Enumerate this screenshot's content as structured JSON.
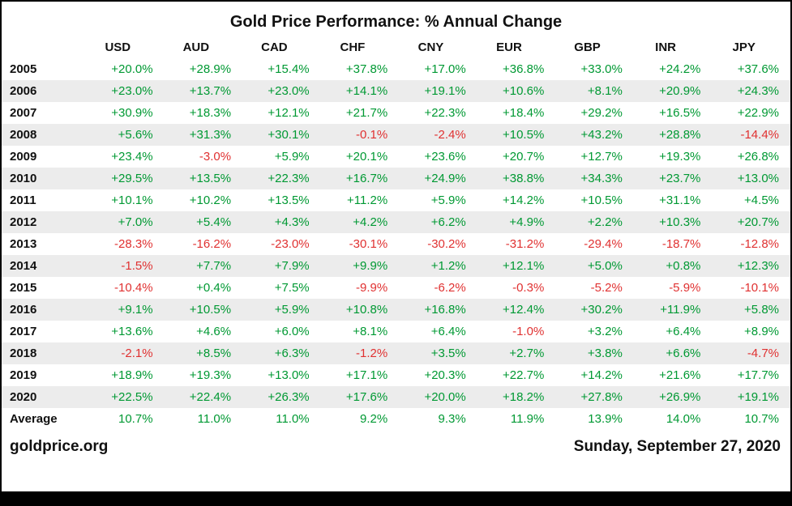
{
  "title": "Gold Price Performance: % Annual Change",
  "footer": {
    "source": "goldprice.org",
    "date": "Sunday, September 27, 2020"
  },
  "colors": {
    "positive": "#009933",
    "negative": "#e03131",
    "row_alt": "#ececec",
    "bottom_bar": "#000000"
  },
  "chart_data": {
    "type": "table",
    "title": "Gold Price Performance: % Annual Change",
    "columns": [
      "USD",
      "AUD",
      "CAD",
      "CHF",
      "CNY",
      "EUR",
      "GBP",
      "INR",
      "JPY"
    ],
    "rows": [
      {
        "label": "2005",
        "values": [
          "+20.0%",
          "+28.9%",
          "+15.4%",
          "+37.8%",
          "+17.0%",
          "+36.8%",
          "+33.0%",
          "+24.2%",
          "+37.6%"
        ]
      },
      {
        "label": "2006",
        "values": [
          "+23.0%",
          "+13.7%",
          "+23.0%",
          "+14.1%",
          "+19.1%",
          "+10.6%",
          "+8.1%",
          "+20.9%",
          "+24.3%"
        ]
      },
      {
        "label": "2007",
        "values": [
          "+30.9%",
          "+18.3%",
          "+12.1%",
          "+21.7%",
          "+22.3%",
          "+18.4%",
          "+29.2%",
          "+16.5%",
          "+22.9%"
        ]
      },
      {
        "label": "2008",
        "values": [
          "+5.6%",
          "+31.3%",
          "+30.1%",
          "-0.1%",
          "-2.4%",
          "+10.5%",
          "+43.2%",
          "+28.8%",
          "-14.4%"
        ]
      },
      {
        "label": "2009",
        "values": [
          "+23.4%",
          "-3.0%",
          "+5.9%",
          "+20.1%",
          "+23.6%",
          "+20.7%",
          "+12.7%",
          "+19.3%",
          "+26.8%"
        ]
      },
      {
        "label": "2010",
        "values": [
          "+29.5%",
          "+13.5%",
          "+22.3%",
          "+16.7%",
          "+24.9%",
          "+38.8%",
          "+34.3%",
          "+23.7%",
          "+13.0%"
        ]
      },
      {
        "label": "2011",
        "values": [
          "+10.1%",
          "+10.2%",
          "+13.5%",
          "+11.2%",
          "+5.9%",
          "+14.2%",
          "+10.5%",
          "+31.1%",
          "+4.5%"
        ]
      },
      {
        "label": "2012",
        "values": [
          "+7.0%",
          "+5.4%",
          "+4.3%",
          "+4.2%",
          "+6.2%",
          "+4.9%",
          "+2.2%",
          "+10.3%",
          "+20.7%"
        ]
      },
      {
        "label": "2013",
        "values": [
          "-28.3%",
          "-16.2%",
          "-23.0%",
          "-30.1%",
          "-30.2%",
          "-31.2%",
          "-29.4%",
          "-18.7%",
          "-12.8%"
        ]
      },
      {
        "label": "2014",
        "values": [
          "-1.5%",
          "+7.7%",
          "+7.9%",
          "+9.9%",
          "+1.2%",
          "+12.1%",
          "+5.0%",
          "+0.8%",
          "+12.3%"
        ]
      },
      {
        "label": "2015",
        "values": [
          "-10.4%",
          "+0.4%",
          "+7.5%",
          "-9.9%",
          "-6.2%",
          "-0.3%",
          "-5.2%",
          "-5.9%",
          "-10.1%"
        ]
      },
      {
        "label": "2016",
        "values": [
          "+9.1%",
          "+10.5%",
          "+5.9%",
          "+10.8%",
          "+16.8%",
          "+12.4%",
          "+30.2%",
          "+11.9%",
          "+5.8%"
        ]
      },
      {
        "label": "2017",
        "values": [
          "+13.6%",
          "+4.6%",
          "+6.0%",
          "+8.1%",
          "+6.4%",
          "-1.0%",
          "+3.2%",
          "+6.4%",
          "+8.9%"
        ]
      },
      {
        "label": "2018",
        "values": [
          "-2.1%",
          "+8.5%",
          "+6.3%",
          "-1.2%",
          "+3.5%",
          "+2.7%",
          "+3.8%",
          "+6.6%",
          "-4.7%"
        ]
      },
      {
        "label": "2019",
        "values": [
          "+18.9%",
          "+19.3%",
          "+13.0%",
          "+17.1%",
          "+20.3%",
          "+22.7%",
          "+14.2%",
          "+21.6%",
          "+17.7%"
        ]
      },
      {
        "label": "2020",
        "values": [
          "+22.5%",
          "+22.4%",
          "+26.3%",
          "+17.6%",
          "+20.0%",
          "+18.2%",
          "+27.8%",
          "+26.9%",
          "+19.1%"
        ]
      },
      {
        "label": "Average",
        "values": [
          "10.7%",
          "11.0%",
          "11.0%",
          "9.2%",
          "9.3%",
          "11.9%",
          "13.9%",
          "14.0%",
          "10.7%"
        ]
      }
    ]
  }
}
